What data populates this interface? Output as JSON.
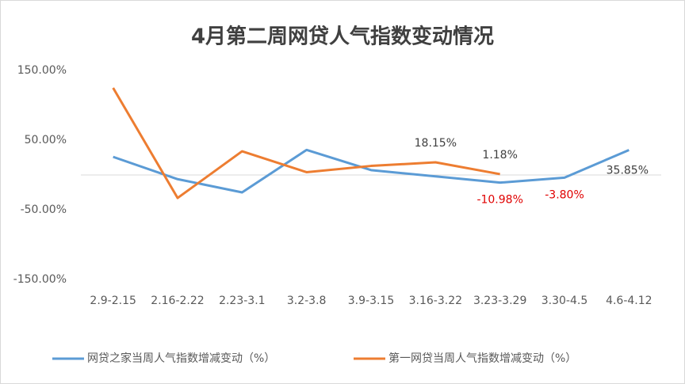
{
  "chart_data": {
    "type": "line",
    "title": "4月第二周网贷人气指数变动情况",
    "categories": [
      "2.9-2.15",
      "2.16-2.22",
      "2.23-3.1",
      "3.2-3.8",
      "3.9-3.15",
      "3.16-3.22",
      "3.23-3.29",
      "3.30-4.5",
      "4.6-4.12"
    ],
    "series": [
      {
        "name": "网贷之家当周人气指数增减变动（%）",
        "color": "#5b9bd5",
        "values": [
          26,
          -6,
          -25,
          36,
          7,
          -2,
          -10.98,
          -3.8,
          35.85
        ],
        "value_labels": [
          null,
          null,
          null,
          null,
          null,
          null,
          "-10.98%",
          "-3.80%",
          "35.85%"
        ]
      },
      {
        "name": "第一网贷当周人气指数增减变动（%）",
        "color": "#ed7d31",
        "values": [
          125,
          -33,
          34,
          4,
          13,
          18.15,
          1.18,
          null,
          null
        ],
        "value_labels": [
          null,
          null,
          null,
          null,
          null,
          "18.15%",
          "1.18%",
          null,
          null
        ]
      }
    ],
    "ylim": [
      -150,
      150
    ],
    "yticks": [
      {
        "value": 150,
        "label": "150.00%"
      },
      {
        "value": 50,
        "label": "50.00%"
      },
      {
        "value": -50,
        "label": "-50.00%"
      },
      {
        "value": -150,
        "label": "-150.00%"
      }
    ],
    "legend": "bottom"
  }
}
